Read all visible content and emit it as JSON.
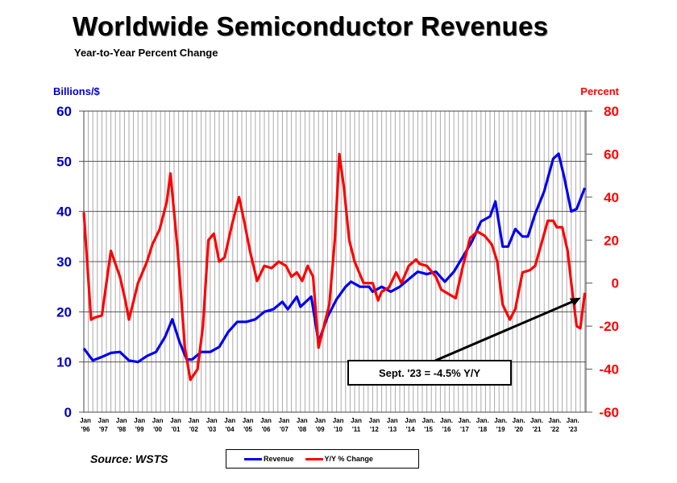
{
  "chart_data": {
    "type": "line",
    "title": "Worldwide Semiconductor Revenues",
    "subtitle": "Year-to-Year Percent Change",
    "ylabel_left": "Billions/$",
    "ylabel_right": "Percent",
    "ylim_left": [
      0,
      60
    ],
    "ylim_right": [
      -60,
      80
    ],
    "yticks_left": [
      0,
      10,
      20,
      30,
      40,
      50,
      60
    ],
    "yticks_right": [
      -60,
      -40,
      -20,
      0,
      20,
      40,
      60,
      80
    ],
    "xtick_labels": [
      [
        "Jan",
        "'96"
      ],
      [
        "Jan",
        "'97"
      ],
      [
        "Jan",
        "'98"
      ],
      [
        "Jan",
        "'99"
      ],
      [
        "Jan",
        "'00"
      ],
      [
        "Jan",
        "'01"
      ],
      [
        "Jan",
        "'02"
      ],
      [
        "Jan",
        "'03"
      ],
      [
        "Jan",
        "'04"
      ],
      [
        "Jan",
        "'05"
      ],
      [
        "Jan",
        "'06"
      ],
      [
        "Jan",
        "'07"
      ],
      [
        "Jan",
        "'08"
      ],
      [
        "Jan",
        "'09"
      ],
      [
        "Jan",
        "'10"
      ],
      [
        "Jan",
        "'11"
      ],
      [
        "Jan",
        "'12"
      ],
      [
        "Jan",
        "'13"
      ],
      [
        "Jan",
        "'14"
      ],
      [
        "Jan.",
        "'15"
      ],
      [
        "Jan.",
        "'16"
      ],
      [
        "Jan.",
        "'17"
      ],
      [
        "Jan.",
        "'18"
      ],
      [
        "Jan.",
        "'19"
      ],
      [
        "Jan.",
        "'20"
      ],
      [
        "Jan.",
        "'21"
      ],
      [
        "Jan.",
        "'22"
      ],
      [
        "Jan.",
        "'23"
      ]
    ],
    "grid": true,
    "legend_position": "bottom",
    "series": [
      {
        "name": "Revenue",
        "axis": "left",
        "color": "#0000ee",
        "points": [
          [
            1996.0,
            12.7
          ],
          [
            1996.5,
            10.3
          ],
          [
            1997.0,
            11
          ],
          [
            1997.5,
            11.8
          ],
          [
            1998.0,
            12
          ],
          [
            1998.5,
            10.3
          ],
          [
            1999.0,
            10
          ],
          [
            1999.5,
            11.2
          ],
          [
            2000.0,
            12
          ],
          [
            2000.5,
            15
          ],
          [
            2000.9,
            18.5
          ],
          [
            2001.3,
            14
          ],
          [
            2001.7,
            10.5
          ],
          [
            2002.0,
            10.5
          ],
          [
            2002.5,
            12
          ],
          [
            2003.0,
            12
          ],
          [
            2003.5,
            13
          ],
          [
            2004.0,
            16
          ],
          [
            2004.5,
            18
          ],
          [
            2005.0,
            18
          ],
          [
            2005.5,
            18.5
          ],
          [
            2006.0,
            20
          ],
          [
            2006.5,
            20.5
          ],
          [
            2007.0,
            22
          ],
          [
            2007.3,
            20.5
          ],
          [
            2007.8,
            23
          ],
          [
            2008.0,
            21
          ],
          [
            2008.6,
            23
          ],
          [
            2009.0,
            14
          ],
          [
            2009.5,
            19
          ],
          [
            2010.0,
            22.5
          ],
          [
            2010.5,
            25
          ],
          [
            2010.8,
            26
          ],
          [
            2011.3,
            25
          ],
          [
            2011.8,
            25
          ],
          [
            2012.0,
            24
          ],
          [
            2012.5,
            25
          ],
          [
            2013.0,
            24
          ],
          [
            2013.5,
            25
          ],
          [
            2014.0,
            26.5
          ],
          [
            2014.5,
            28
          ],
          [
            2015.0,
            27.5
          ],
          [
            2015.5,
            28
          ],
          [
            2016.0,
            26
          ],
          [
            2016.5,
            28
          ],
          [
            2017.0,
            31
          ],
          [
            2017.5,
            34
          ],
          [
            2018.0,
            38
          ],
          [
            2018.5,
            39
          ],
          [
            2018.8,
            42
          ],
          [
            2019.2,
            33
          ],
          [
            2019.5,
            33
          ],
          [
            2019.9,
            36.5
          ],
          [
            2020.3,
            35
          ],
          [
            2020.6,
            35
          ],
          [
            2021.0,
            39.5
          ],
          [
            2021.5,
            44
          ],
          [
            2022.0,
            50.5
          ],
          [
            2022.3,
            51.5
          ],
          [
            2022.6,
            47
          ],
          [
            2023.0,
            40
          ],
          [
            2023.3,
            40.5
          ],
          [
            2023.75,
            44.7
          ]
        ]
      },
      {
        "name": "Y/Y % Change",
        "axis": "right",
        "color": "#ff0000",
        "points": [
          [
            1996.0,
            33
          ],
          [
            1996.4,
            -17
          ],
          [
            1996.6,
            -16
          ],
          [
            1997.0,
            -15
          ],
          [
            1997.5,
            15
          ],
          [
            1998.0,
            3
          ],
          [
            1998.3,
            -8
          ],
          [
            1998.5,
            -17
          ],
          [
            1999.0,
            0
          ],
          [
            1999.5,
            10
          ],
          [
            1999.8,
            18
          ],
          [
            2000.2,
            25
          ],
          [
            2000.6,
            38
          ],
          [
            2000.8,
            51
          ],
          [
            2001.2,
            15
          ],
          [
            2001.6,
            -30
          ],
          [
            2001.9,
            -45
          ],
          [
            2002.3,
            -40
          ],
          [
            2002.6,
            -20
          ],
          [
            2002.9,
            20
          ],
          [
            2003.2,
            23
          ],
          [
            2003.5,
            10
          ],
          [
            2003.8,
            12
          ],
          [
            2004.2,
            27
          ],
          [
            2004.6,
            40
          ],
          [
            2004.9,
            28
          ],
          [
            2005.2,
            15
          ],
          [
            2005.6,
            1
          ],
          [
            2006.0,
            8
          ],
          [
            2006.4,
            7
          ],
          [
            2006.8,
            10
          ],
          [
            2007.2,
            8
          ],
          [
            2007.5,
            3
          ],
          [
            2007.8,
            5
          ],
          [
            2008.1,
            1
          ],
          [
            2008.4,
            8
          ],
          [
            2008.7,
            3
          ],
          [
            2009.0,
            -30
          ],
          [
            2009.3,
            -20
          ],
          [
            2009.6,
            -10
          ],
          [
            2009.9,
            20
          ],
          [
            2010.15,
            60
          ],
          [
            2010.4,
            45
          ],
          [
            2010.7,
            20
          ],
          [
            2011.0,
            10
          ],
          [
            2011.5,
            0
          ],
          [
            2012.0,
            0
          ],
          [
            2012.3,
            -8
          ],
          [
            2012.5,
            -4
          ],
          [
            2012.9,
            -2
          ],
          [
            2013.3,
            5
          ],
          [
            2013.6,
            0
          ],
          [
            2014.0,
            8
          ],
          [
            2014.4,
            11
          ],
          [
            2014.6,
            9
          ],
          [
            2015.0,
            8
          ],
          [
            2015.5,
            3
          ],
          [
            2015.8,
            -3
          ],
          [
            2016.2,
            -5
          ],
          [
            2016.6,
            -7
          ],
          [
            2017.0,
            8
          ],
          [
            2017.4,
            21
          ],
          [
            2017.8,
            24
          ],
          [
            2018.2,
            22
          ],
          [
            2018.6,
            18
          ],
          [
            2018.9,
            10
          ],
          [
            2019.2,
            -10
          ],
          [
            2019.6,
            -17
          ],
          [
            2019.9,
            -12
          ],
          [
            2020.3,
            5
          ],
          [
            2020.7,
            6
          ],
          [
            2021.0,
            8
          ],
          [
            2021.4,
            20
          ],
          [
            2021.7,
            29
          ],
          [
            2022.0,
            29
          ],
          [
            2022.2,
            26
          ],
          [
            2022.5,
            26
          ],
          [
            2022.8,
            15
          ],
          [
            2023.0,
            0
          ],
          [
            2023.3,
            -20
          ],
          [
            2023.5,
            -21
          ],
          [
            2023.75,
            -4.5
          ]
        ]
      }
    ],
    "annotation": "Sept. '23 = -4.5% Y/Y",
    "source": "Source: WSTS"
  }
}
